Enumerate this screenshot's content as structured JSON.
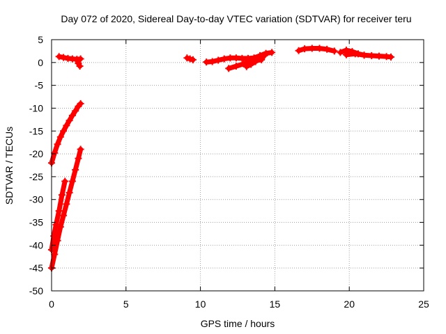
{
  "chart_data": {
    "type": "scatter",
    "title": "Day 072 of 2020, Sidereal Day-to-day VTEC variation (SDTVAR) for receiver teru",
    "xlabel": "GPS time / hours",
    "ylabel": "SDTVAR / TECUs",
    "xlim": [
      0,
      25
    ],
    "ylim": [
      -50,
      5
    ],
    "xticks": [
      0,
      5,
      10,
      15,
      20,
      25
    ],
    "yticks": [
      5,
      0,
      -5,
      -10,
      -15,
      -20,
      -25,
      -30,
      -35,
      -40,
      -45,
      -50
    ],
    "grid": true,
    "series_color": "#ff0000",
    "series": [
      {
        "x": [
          0.0,
          0.2,
          0.4,
          0.6,
          0.8,
          1.0,
          1.2,
          1.4,
          1.6,
          1.8,
          1.95
        ],
        "y": [
          -22.0,
          -19.8,
          -17.9,
          -16.3,
          -15.0,
          -13.8,
          -12.7,
          -11.6,
          -10.6,
          -9.6,
          -9.0
        ]
      },
      {
        "x": [
          0.0,
          0.15,
          0.3,
          0.5,
          0.7,
          0.9
        ],
        "y": [
          -41.0,
          -38.0,
          -35.5,
          -32.5,
          -29.0,
          -26.0
        ]
      },
      {
        "x": [
          0.0,
          0.2,
          0.4,
          0.6,
          0.8,
          1.0,
          1.2,
          1.4,
          1.6,
          1.8,
          1.95
        ],
        "y": [
          -45.0,
          -42.0,
          -39.0,
          -36.0,
          -33.5,
          -31.0,
          -28.5,
          -26.0,
          -23.5,
          -21.0,
          -19.0
        ]
      },
      {
        "x": [
          0.5,
          0.8,
          1.1,
          1.4,
          1.7,
          1.95
        ],
        "y": [
          1.3,
          1.1,
          0.9,
          0.8,
          0.7,
          0.8
        ]
      },
      {
        "x": [
          1.7,
          1.8,
          1.9
        ],
        "y": [
          0.6,
          -0.2,
          -0.8
        ]
      },
      {
        "x": [
          9.1,
          9.3,
          9.5
        ],
        "y": [
          1.0,
          0.8,
          0.6
        ]
      },
      {
        "x": [
          10.4,
          10.8,
          11.2,
          11.6,
          12.0,
          12.4,
          12.8,
          13.2,
          13.6,
          14.0,
          14.4,
          14.8
        ],
        "y": [
          0.1,
          0.2,
          0.5,
          0.8,
          1.0,
          1.0,
          0.9,
          0.9,
          1.0,
          1.5,
          2.0,
          2.2
        ]
      },
      {
        "x": [
          11.9,
          12.4,
          12.9,
          13.3,
          13.7,
          14.1
        ],
        "y": [
          -1.3,
          -0.8,
          -0.3,
          0.2,
          0.4,
          0.6
        ]
      },
      {
        "x": [
          13.1,
          13.4,
          13.7,
          14.0,
          14.3
        ],
        "y": [
          -0.9,
          -0.4,
          0.2,
          0.8,
          1.5
        ]
      },
      {
        "x": [
          16.6,
          17.0,
          17.5,
          18.0,
          18.5,
          19.0
        ],
        "y": [
          2.6,
          3.0,
          3.1,
          3.1,
          2.9,
          2.5
        ]
      },
      {
        "x": [
          19.4,
          19.8,
          20.2,
          20.6,
          21.0,
          21.5,
          22.0,
          22.5,
          22.8
        ],
        "y": [
          2.2,
          2.7,
          2.4,
          1.9,
          1.6,
          1.5,
          1.4,
          1.3,
          1.2
        ]
      },
      {
        "x": [
          19.8,
          20.4,
          21.0
        ],
        "y": [
          1.7,
          1.9,
          1.6
        ]
      }
    ]
  }
}
